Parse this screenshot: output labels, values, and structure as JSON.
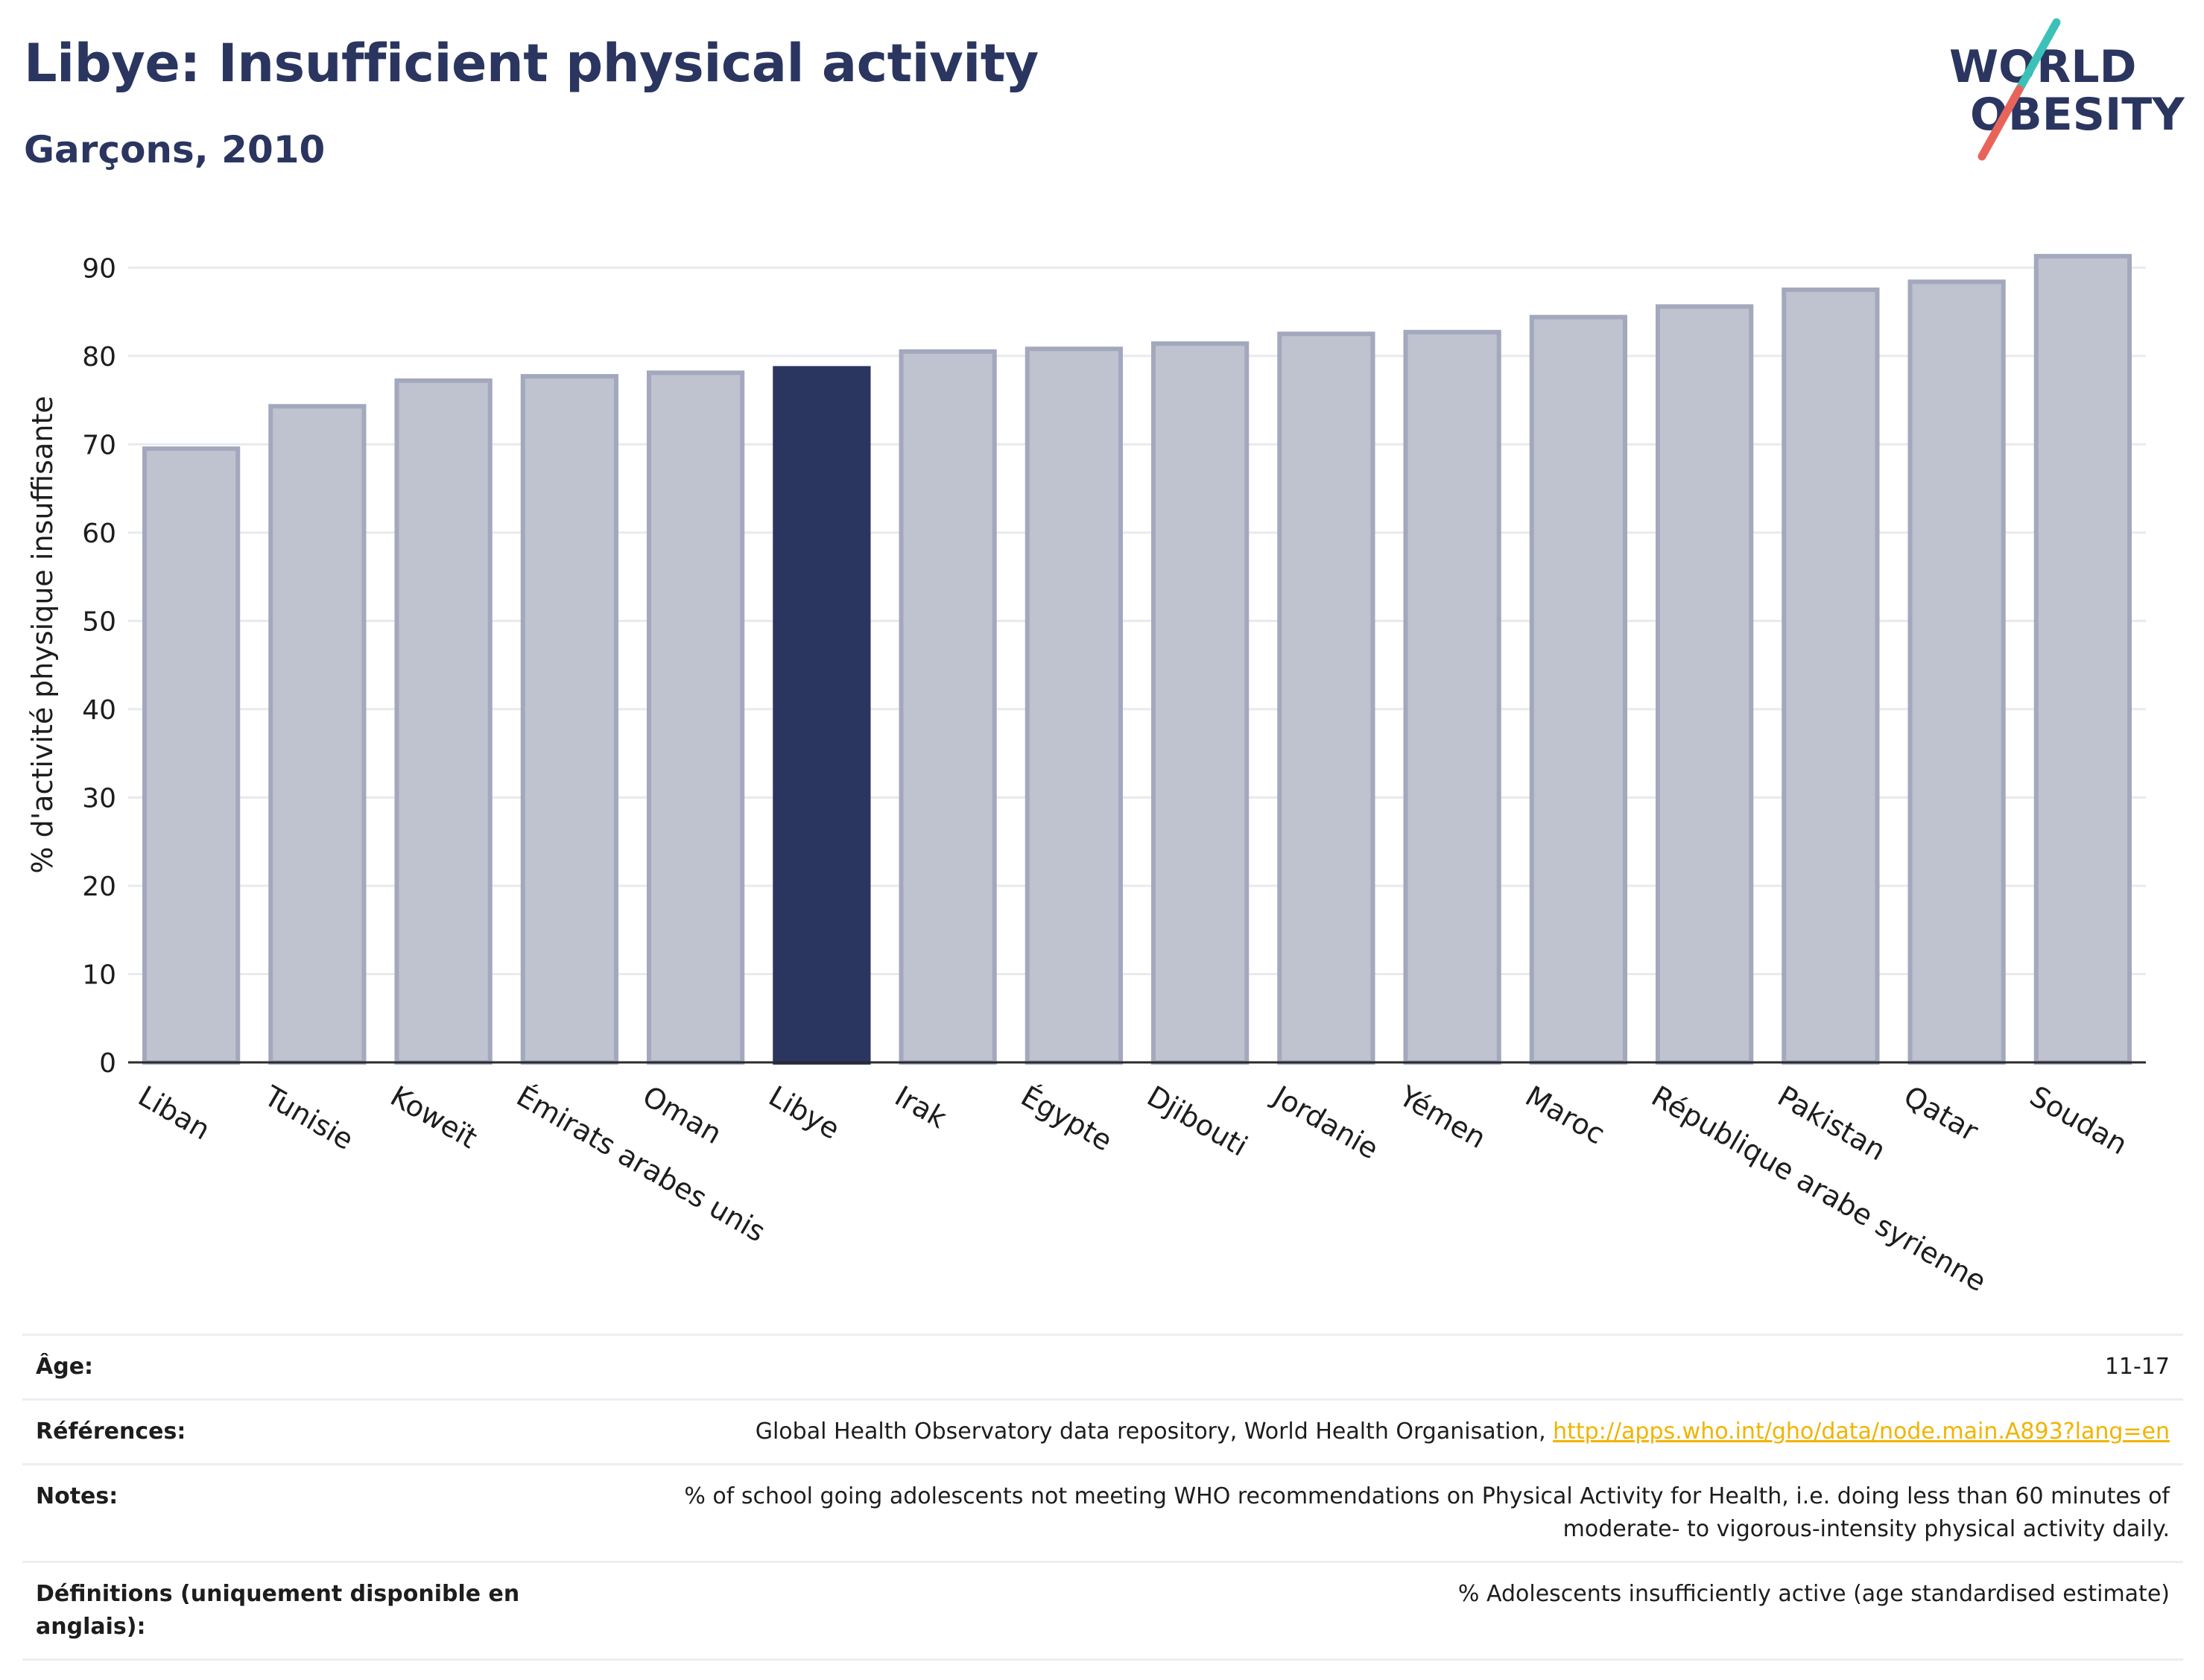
{
  "header": {
    "title": "Libye: Insufficient physical activity",
    "subtitle": "Garçons, 2010"
  },
  "logo": {
    "line1": "WORLD",
    "line2": "OBESITY"
  },
  "colors": {
    "highlight": "#2a3560",
    "bar": "#bfc2cf",
    "bar_edge": "#a3a8bd",
    "logo_teal": "#3cc1b8",
    "logo_coral": "#e8645a",
    "link": "#f0b400"
  },
  "chart_data": {
    "type": "bar",
    "title": "Libye: Insufficient physical activity",
    "subtitle": "Garçons, 2010",
    "xlabel": "",
    "ylabel": "% d'activité physique insuffisante",
    "ylim": [
      0,
      95
    ],
    "yticks": [
      0,
      10,
      20,
      30,
      40,
      50,
      60,
      70,
      80,
      90
    ],
    "grid": true,
    "highlight": "Libye",
    "categories": [
      "Liban",
      "Tunisie",
      "Koweït",
      "Émirats arabes unis",
      "Oman",
      "Libye",
      "Irak",
      "Égypte",
      "Djibouti",
      "Jordanie",
      "Yémen",
      "Maroc",
      "République arabe syrienne",
      "Pakistan",
      "Qatar",
      "Soudan"
    ],
    "values": [
      69.5,
      74.3,
      77.2,
      77.7,
      78.1,
      78.6,
      80.5,
      80.8,
      81.4,
      82.5,
      82.7,
      84.4,
      85.6,
      87.5,
      88.4,
      91.3
    ]
  },
  "table": {
    "rows": [
      {
        "label": "Âge:",
        "value": "11-17"
      },
      {
        "label": "Références:",
        "value": "Global Health Observatory data repository, World Health Organisation, ",
        "link": "http://apps.who.int/gho/data/node.main.A893?lang=en"
      },
      {
        "label": "Notes:",
        "value": "% of school going adolescents not meeting WHO recommendations on Physical Activity for Health, i.e. doing less than 60 minutes of moderate- to vigorous-intensity physical activity daily."
      },
      {
        "label": "Définitions (uniquement disponible en anglais):",
        "value": "% Adolescents insufficiently active (age standardised estimate)"
      }
    ]
  }
}
